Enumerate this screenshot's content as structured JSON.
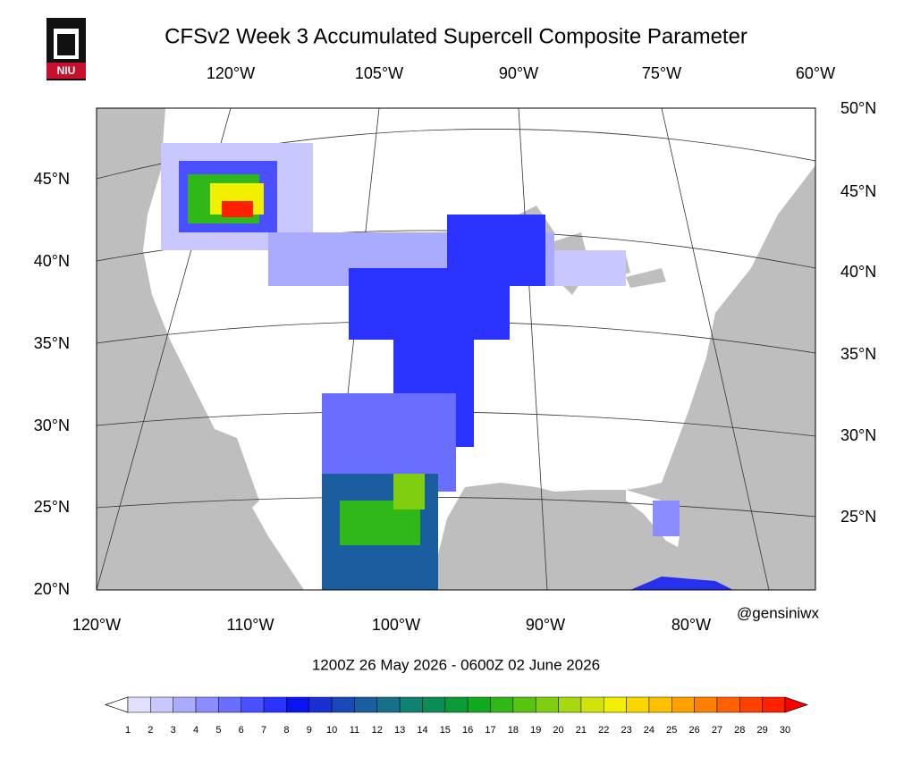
{
  "header": {
    "title": "CFSv2 Week 3 Accumulated Supercell Composite Parameter",
    "logo": "NIU"
  },
  "map": {
    "top_lon_labels": [
      "120°W",
      "105°W",
      "90°W",
      "75°W",
      "60°W"
    ],
    "right_lat_labels": [
      "50°N",
      "45°N",
      "40°N",
      "35°N",
      "30°N",
      "25°N"
    ],
    "left_lat_labels": [
      "45°N",
      "40°N",
      "35°N",
      "30°N",
      "25°N",
      "20°N"
    ],
    "bottom_lon_labels": [
      "120°W",
      "110°W",
      "100°W",
      "90°W",
      "80°W"
    ],
    "credit": "@gensiniwx"
  },
  "valid_time": "1200Z 26  May  2026  - 0600Z 02  June  2026",
  "colorbar": {
    "labels": [
      1,
      2,
      3,
      4,
      5,
      6,
      7,
      8,
      9,
      10,
      11,
      12,
      13,
      14,
      15,
      16,
      17,
      18,
      19,
      20,
      21,
      22,
      23,
      24,
      25,
      26,
      27,
      28,
      29,
      30
    ],
    "colors": [
      "#ffffff",
      "#e1e1ff",
      "#c8c8ff",
      "#aaaaff",
      "#8a8cff",
      "#6a6eff",
      "#4a50ff",
      "#2a32ff",
      "#0a14f0",
      "#1830d0",
      "#1a48b8",
      "#1a5ea0",
      "#157088",
      "#108070",
      "#0c8c55",
      "#0a9a38",
      "#10aa20",
      "#30b818",
      "#58c410",
      "#80ce10",
      "#a8d810",
      "#d0e40c",
      "#f0f000",
      "#f8d800",
      "#ffc000",
      "#ffa000",
      "#ff8000",
      "#ff6000",
      "#ff4000",
      "#ff2000",
      "#ff0000"
    ]
  }
}
